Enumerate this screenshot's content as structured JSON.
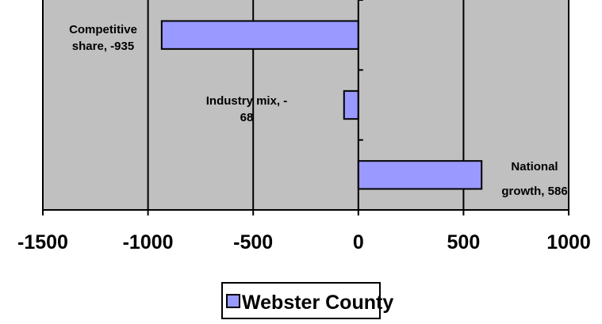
{
  "chart_data": {
    "type": "bar",
    "orientation": "horizontal",
    "categories": [
      "Competitive share",
      "Industry mix",
      "National growth"
    ],
    "series": [
      {
        "name": "Webster County",
        "color": "#9999ff",
        "values": [
          -935,
          -68,
          586
        ]
      }
    ],
    "data_labels": [
      [
        "Competitive",
        "share, -935"
      ],
      [
        "Industry mix, -",
        "68"
      ],
      [
        "National",
        "growth, 586"
      ]
    ],
    "title": "",
    "xlabel": "",
    "ylabel": "",
    "xlim": [
      -1500,
      1000
    ],
    "x_ticks": [
      -1500,
      -1000,
      -500,
      0,
      500,
      1000
    ],
    "x_tick_labels": [
      "-1500",
      "-1000",
      "-500",
      "0",
      "500",
      "1000"
    ],
    "grid": "vertical major gridlines",
    "plot_background": "#c0c0c0",
    "legend": {
      "position": "bottom-center",
      "label": "Webster County"
    }
  }
}
